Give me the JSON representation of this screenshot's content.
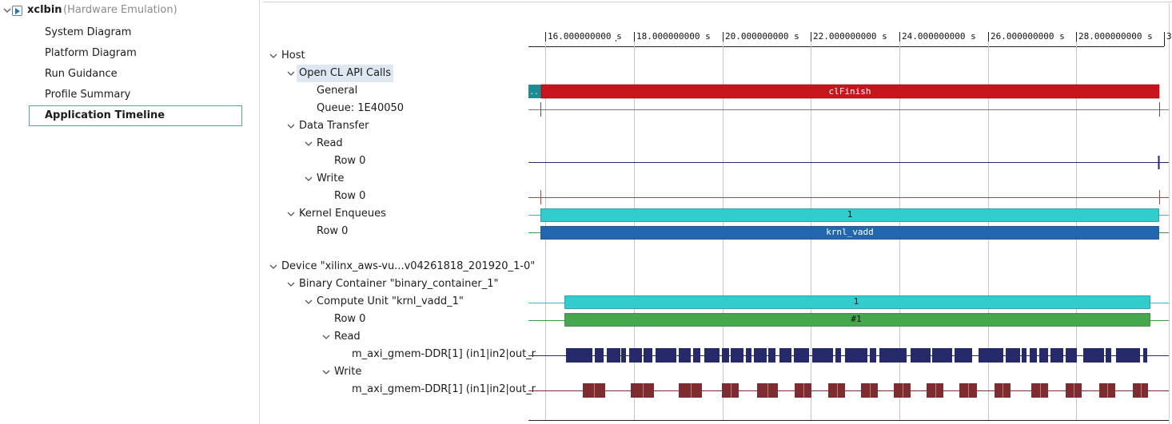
{
  "navigator": {
    "root": {
      "title": "xclbin",
      "subtitle": "(Hardware Emulation)"
    },
    "items": [
      {
        "label": "System Diagram"
      },
      {
        "label": "Platform Diagram"
      },
      {
        "label": "Run Guidance"
      },
      {
        "label": "Profile Summary"
      },
      {
        "label": "Application Timeline"
      }
    ]
  },
  "tree": {
    "host": "Host",
    "opencl": "Open CL API Calls",
    "general": "General",
    "queue": "Queue: 1E40050",
    "data_transfer": "Data Transfer",
    "read": "Read",
    "read_row": "Row 0",
    "write": "Write",
    "write_row": "Row 0",
    "kernel_enqueues": "Kernel Enqueues",
    "kernel_row": "Row 0",
    "device": "Device \"xilinx_aws-vu...v04261818_201920_1-0\"",
    "binary_container": "Binary Container \"binary_container_1\"",
    "compute_unit": "Compute Unit \"krnl_vadd_1\"",
    "cu_row": "Row 0",
    "cu_read": "Read",
    "cu_read_port": "m_axi_gmem-DDR[1] (in1|in2|out_r",
    "cu_write": "Write",
    "cu_write_port": "m_axi_gmem-DDR[1] (in1|in2|out_r"
  },
  "timeline": {
    "ticks": [
      "16.000000000 s",
      "18.000000000 s",
      "20.000000000 s",
      "22.000000000 s",
      "24.000000000 s",
      "26.000000000 s",
      "28.000000000 s",
      "3"
    ],
    "bar_labels": {
      "general_small": "..",
      "general_main": "clFinish",
      "kernel_enqueue": "1",
      "kernel_row": "krnl_vadd",
      "cu": "1",
      "cu_row": "#1"
    }
  },
  "colors": {
    "accent_selection": "#53a98f",
    "row_highlight": "#dfe8f1",
    "api_call": "#c8141c",
    "api_small": "#1f8c94",
    "enqueue": "#33cccc",
    "kernel": "#2266b0",
    "cu_run": "#45a84c",
    "axi_read": "#262a6b",
    "axi_write": "#7f2c30",
    "gridline": "#c8c8c8"
  }
}
